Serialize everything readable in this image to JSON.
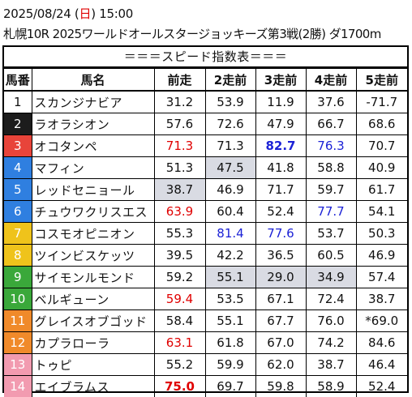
{
  "header": {
    "date_prefix": "2025/08/24 (",
    "weekday": "日",
    "date_suffix": ") 15:00",
    "race_info": "札幌10R 2025ワールドオールスタージョッキーズ第3戦(2勝) ダ1700m"
  },
  "table": {
    "title": "＝＝＝スピード指数表＝＝＝",
    "columns": [
      "馬番",
      "馬名",
      "前走",
      "2走前",
      "3走前",
      "4走前",
      "5走前"
    ],
    "colors": {
      "red": "#e00000",
      "blue": "#1c22d6",
      "gray": "#d9dbe3"
    },
    "rows": [
      {
        "num": "1",
        "num_bg": "#ffffff",
        "num_fg": "#111111",
        "name": "スカンジナビア",
        "values": [
          "31.2",
          "53.9",
          "11.9",
          "37.6",
          "-71.7"
        ],
        "styles": [
          "",
          "",
          "",
          "",
          ""
        ]
      },
      {
        "num": "2",
        "num_bg": "#1c1c1c",
        "num_fg": "#ffffff",
        "name": "ラオラシオン",
        "values": [
          "57.6",
          "72.6",
          "47.9",
          "66.7",
          "68.6"
        ],
        "styles": [
          "",
          "",
          "",
          "",
          ""
        ]
      },
      {
        "num": "3",
        "num_bg": "#e8443a",
        "num_fg": "#ffffff",
        "name": "オコタンペ",
        "values": [
          "71.3",
          "71.3",
          "82.7",
          "76.3",
          "70.7"
        ],
        "styles": [
          "red",
          "",
          "blue bold",
          "blue",
          ""
        ]
      },
      {
        "num": "4",
        "num_bg": "#2f7fe0",
        "num_fg": "#ffffff",
        "name": "マフィン",
        "values": [
          "51.3",
          "47.5",
          "41.8",
          "58.8",
          "40.9"
        ],
        "styles": [
          "",
          "gray",
          "",
          "",
          ""
        ]
      },
      {
        "num": "5",
        "num_bg": "#2f7fe0",
        "num_fg": "#ffffff",
        "name": "レッドセニョール",
        "values": [
          "38.7",
          "46.9",
          "71.7",
          "59.7",
          "61.7"
        ],
        "styles": [
          "gray",
          "",
          "",
          "",
          ""
        ]
      },
      {
        "num": "6",
        "num_bg": "#2f7fe0",
        "num_fg": "#ffffff",
        "name": "チュウワクリスエス",
        "values": [
          "63.9",
          "60.4",
          "52.4",
          "77.7",
          "54.1"
        ],
        "styles": [
          "red",
          "",
          "",
          "blue",
          ""
        ]
      },
      {
        "num": "7",
        "num_bg": "#efc31b",
        "num_fg": "#ffffff",
        "name": "コスモオピニオン",
        "values": [
          "55.3",
          "81.4",
          "77.6",
          "53.7",
          "50.3"
        ],
        "styles": [
          "",
          "blue",
          "blue",
          "",
          ""
        ]
      },
      {
        "num": "8",
        "num_bg": "#efc31b",
        "num_fg": "#ffffff",
        "name": "ツインビスケッツ",
        "values": [
          "39.5",
          "42.2",
          "36.5",
          "60.5",
          "46.9"
        ],
        "styles": [
          "",
          "",
          "",
          "",
          ""
        ]
      },
      {
        "num": "9",
        "num_bg": "#3aa83a",
        "num_fg": "#ffffff",
        "name": "サイモンルモンド",
        "values": [
          "59.2",
          "55.1",
          "29.0",
          "34.9",
          "57.4"
        ],
        "styles": [
          "",
          "gray",
          "gray",
          "gray",
          ""
        ]
      },
      {
        "num": "10",
        "num_bg": "#3aa83a",
        "num_fg": "#ffffff",
        "name": "ベルギューン",
        "values": [
          "59.4",
          "53.5",
          "67.1",
          "72.4",
          "38.7"
        ],
        "styles": [
          "red",
          "",
          "",
          "",
          ""
        ]
      },
      {
        "num": "11",
        "num_bg": "#f08a2a",
        "num_fg": "#ffffff",
        "name": "グレイスオブゴッド",
        "values": [
          "58.4",
          "55.1",
          "67.7",
          "76.0",
          "*69.0"
        ],
        "styles": [
          "",
          "",
          "",
          "",
          ""
        ]
      },
      {
        "num": "12",
        "num_bg": "#f08a2a",
        "num_fg": "#ffffff",
        "name": "カプラローラ",
        "values": [
          "63.1",
          "61.8",
          "67.0",
          "74.2",
          "84.6"
        ],
        "styles": [
          "red",
          "",
          "",
          "",
          ""
        ]
      },
      {
        "num": "13",
        "num_bg": "#f29bb0",
        "num_fg": "#ffffff",
        "name": "トゥピ",
        "values": [
          "55.2",
          "59.9",
          "62.0",
          "38.7",
          "46.4"
        ],
        "styles": [
          "",
          "",
          "",
          "",
          ""
        ]
      },
      {
        "num": "14",
        "num_bg": "#f29bb0",
        "num_fg": "#ffffff",
        "name": "エイブラムス",
        "values": [
          "75.0",
          "69.7",
          "59.8",
          "58.9",
          "52.4"
        ],
        "styles": [
          "red bold",
          "",
          "",
          "",
          ""
        ]
      }
    ]
  }
}
